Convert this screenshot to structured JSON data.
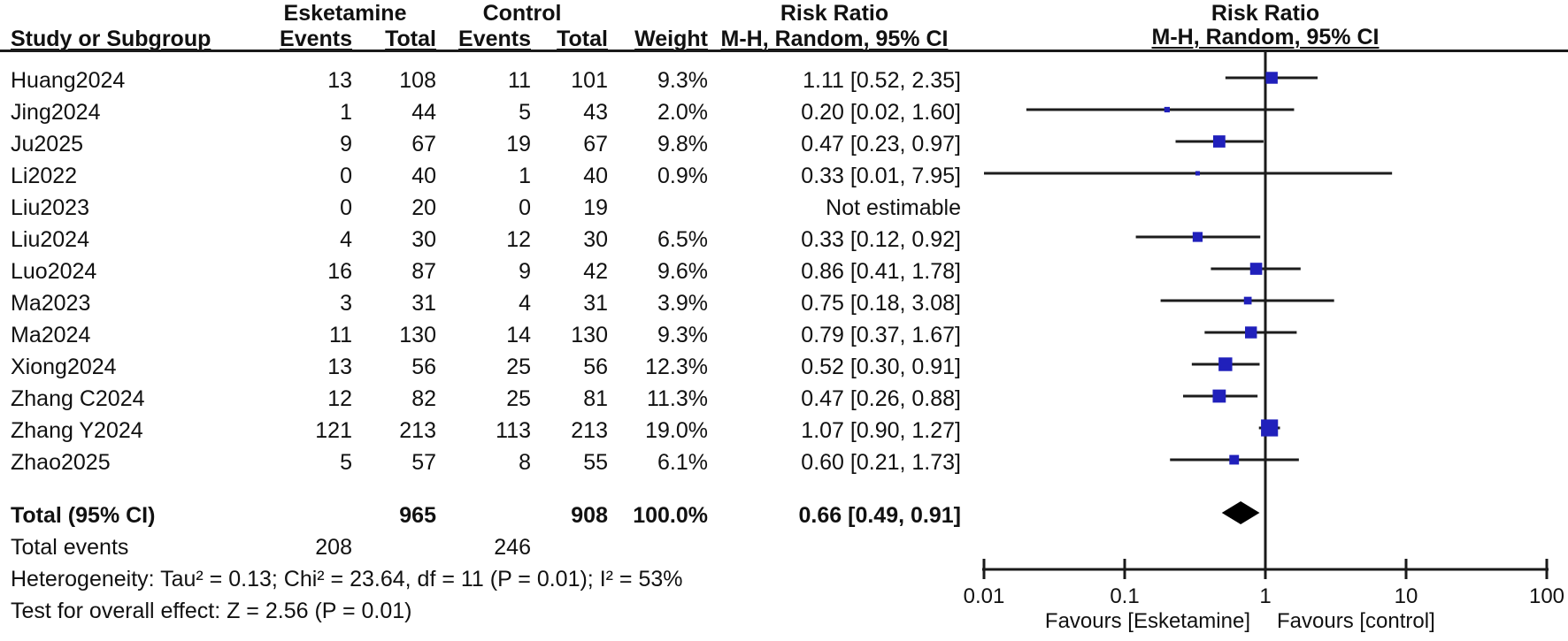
{
  "table": {
    "group1": "Esketamine",
    "group2": "Control",
    "col_study": "Study or Subgroup",
    "col_events": "Events",
    "col_total": "Total",
    "col_weight": "Weight",
    "risk_ratio": "Risk Ratio",
    "method": "M-H, Random, 95% CI"
  },
  "colors": {
    "marker": "#2020bb",
    "ci_line": "#1c1c1c",
    "diamond": "#000000",
    "axis": "#1a1a1a",
    "text": "#111111"
  },
  "chart_data": {
    "type": "forest",
    "effect_measure": "Risk Ratio",
    "method": "M-H, Random, 95% CI",
    "axis": {
      "scale": "log",
      "min": 0.01,
      "max": 100,
      "ticks": [
        0.01,
        0.1,
        1,
        10,
        100
      ],
      "favours_left": "Favours [Esketamine]",
      "favours_right": "Favours [control]"
    },
    "studies": [
      {
        "name": "Huang2024",
        "e1": 13,
        "n1": 108,
        "e2": 11,
        "n2": 101,
        "weight": "9.3%",
        "rr_text": "1.11 [0.52, 2.35]",
        "rr": 1.11,
        "lo": 0.52,
        "hi": 2.35
      },
      {
        "name": "Jing2024",
        "e1": 1,
        "n1": 44,
        "e2": 5,
        "n2": 43,
        "weight": "2.0%",
        "rr_text": "0.20 [0.02, 1.60]",
        "rr": 0.2,
        "lo": 0.02,
        "hi": 1.6
      },
      {
        "name": "Ju2025",
        "e1": 9,
        "n1": 67,
        "e2": 19,
        "n2": 67,
        "weight": "9.8%",
        "rr_text": "0.47 [0.23, 0.97]",
        "rr": 0.47,
        "lo": 0.23,
        "hi": 0.97
      },
      {
        "name": "Li2022",
        "e1": 0,
        "n1": 40,
        "e2": 1,
        "n2": 40,
        "weight": "0.9%",
        "rr_text": "0.33 [0.01, 7.95]",
        "rr": 0.33,
        "lo": 0.01,
        "hi": 7.95
      },
      {
        "name": "Liu2023",
        "e1": 0,
        "n1": 20,
        "e2": 0,
        "n2": 19,
        "weight": "",
        "rr_text": "Not estimable",
        "rr": null,
        "lo": null,
        "hi": null
      },
      {
        "name": "Liu2024",
        "e1": 4,
        "n1": 30,
        "e2": 12,
        "n2": 30,
        "weight": "6.5%",
        "rr_text": "0.33 [0.12, 0.92]",
        "rr": 0.33,
        "lo": 0.12,
        "hi": 0.92
      },
      {
        "name": "Luo2024",
        "e1": 16,
        "n1": 87,
        "e2": 9,
        "n2": 42,
        "weight": "9.6%",
        "rr_text": "0.86 [0.41, 1.78]",
        "rr": 0.86,
        "lo": 0.41,
        "hi": 1.78
      },
      {
        "name": "Ma2023",
        "e1": 3,
        "n1": 31,
        "e2": 4,
        "n2": 31,
        "weight": "3.9%",
        "rr_text": "0.75 [0.18, 3.08]",
        "rr": 0.75,
        "lo": 0.18,
        "hi": 3.08
      },
      {
        "name": "Ma2024",
        "e1": 11,
        "n1": 130,
        "e2": 14,
        "n2": 130,
        "weight": "9.3%",
        "rr_text": "0.79 [0.37, 1.67]",
        "rr": 0.79,
        "lo": 0.37,
        "hi": 1.67
      },
      {
        "name": "Xiong2024",
        "e1": 13,
        "n1": 56,
        "e2": 25,
        "n2": 56,
        "weight": "12.3%",
        "rr_text": "0.52 [0.30, 0.91]",
        "rr": 0.52,
        "lo": 0.3,
        "hi": 0.91
      },
      {
        "name": "Zhang C2024",
        "e1": 12,
        "n1": 82,
        "e2": 25,
        "n2": 81,
        "weight": "11.3%",
        "rr_text": "0.47 [0.26, 0.88]",
        "rr": 0.47,
        "lo": 0.26,
        "hi": 0.88
      },
      {
        "name": "Zhang Y2024",
        "e1": 121,
        "n1": 213,
        "e2": 113,
        "n2": 213,
        "weight": "19.0%",
        "rr_text": "1.07 [0.90, 1.27]",
        "rr": 1.07,
        "lo": 0.9,
        "hi": 1.27
      },
      {
        "name": "Zhao2025",
        "e1": 5,
        "n1": 57,
        "e2": 8,
        "n2": 55,
        "weight": "6.1%",
        "rr_text": "0.60 [0.21, 1.73]",
        "rr": 0.6,
        "lo": 0.21,
        "hi": 1.73
      }
    ],
    "total": {
      "label": "Total (95% CI)",
      "n1": 965,
      "n2": 908,
      "weight": "100.0%",
      "rr_text": "0.66 [0.49, 0.91]",
      "rr": 0.66,
      "lo": 0.49,
      "hi": 0.91
    },
    "total_events": {
      "label": "Total events",
      "e1": 208,
      "e2": 246
    },
    "heterogeneity": "Heterogeneity: Tau² = 0.13; Chi² = 23.64, df = 11 (P = 0.01); I² = 53%",
    "overall_test": "Test for overall effect: Z = 2.56 (P = 0.01)"
  }
}
